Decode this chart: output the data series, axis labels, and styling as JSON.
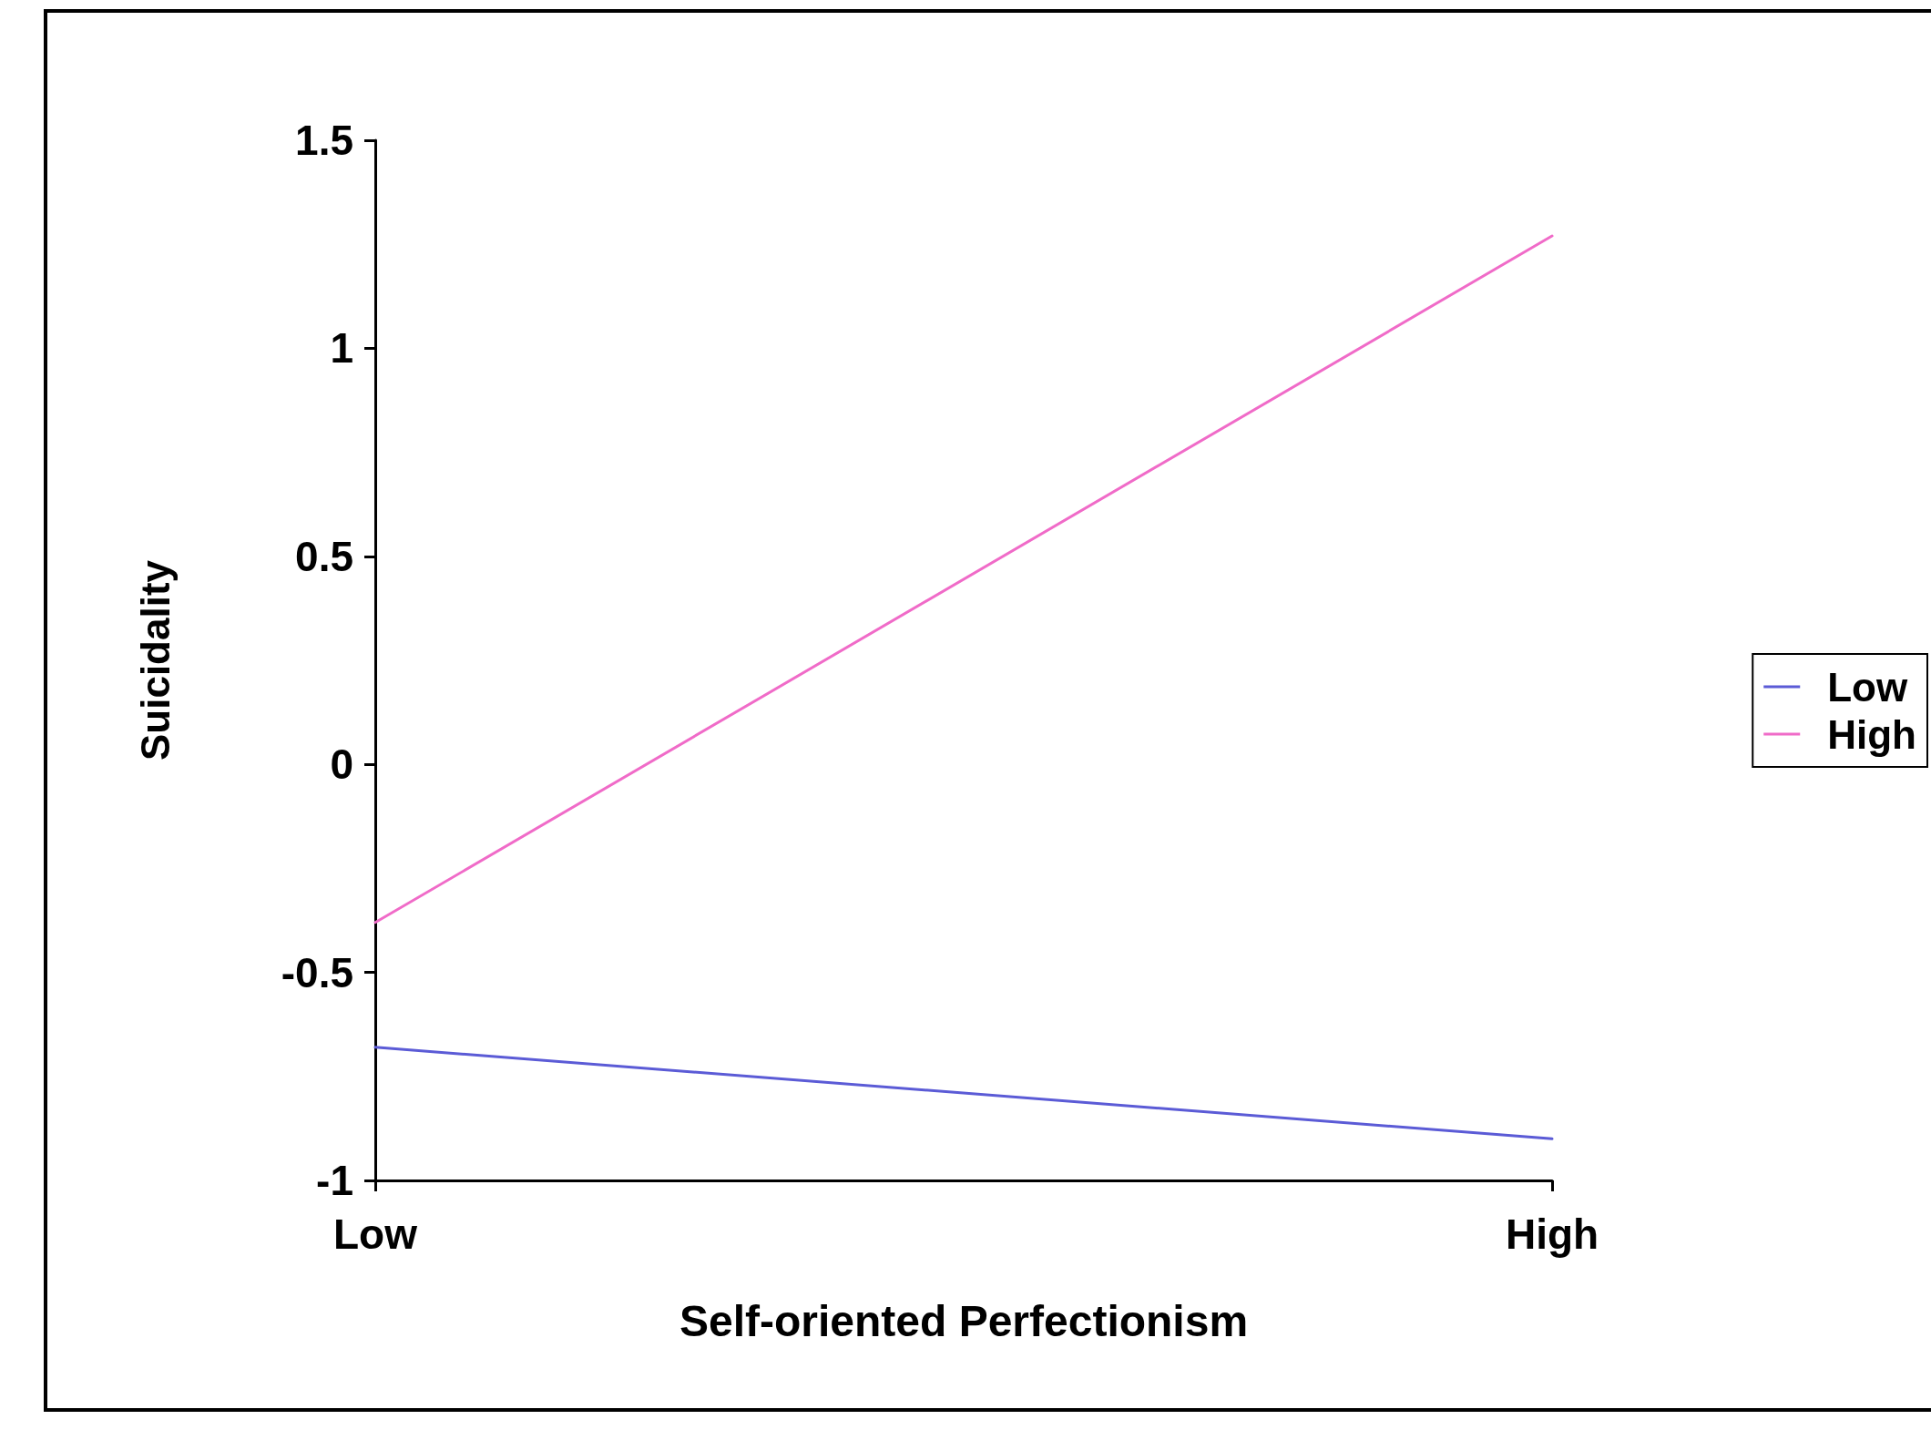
{
  "chart_data": {
    "type": "line",
    "xlabel": "Self-oriented Perfectionism",
    "ylabel": "Suicidality",
    "categories": [
      "Low",
      "High"
    ],
    "series": [
      {
        "name": "Low",
        "color": "#5b5bd6",
        "values": [
          -0.68,
          -0.9
        ]
      },
      {
        "name": "High",
        "color": "#f06bc8",
        "values": [
          -0.38,
          1.27
        ]
      }
    ],
    "ylim": [
      -1,
      1.5
    ],
    "yticks": [
      -1,
      -0.5,
      0,
      0.5,
      1,
      1.5
    ],
    "grid": false,
    "legend": "right",
    "marker": "none",
    "line_style": "solid"
  }
}
